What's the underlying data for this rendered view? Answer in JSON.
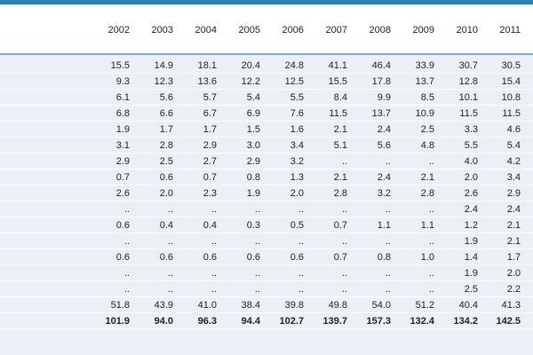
{
  "table": {
    "years": [
      "2002",
      "2003",
      "2004",
      "2005",
      "2006",
      "2007",
      "2008",
      "2009",
      "2010",
      "2011"
    ],
    "rows": [
      [
        "15.5",
        "14.9",
        "18.1",
        "20.4",
        "24.8",
        "41.1",
        "46.4",
        "33.9",
        "30.7",
        "30.5"
      ],
      [
        "9.3",
        "12.3",
        "13.6",
        "12.2",
        "12.5",
        "15.5",
        "17.8",
        "13.7",
        "12.8",
        "15.4"
      ],
      [
        "6.1",
        "5.6",
        "5.7",
        "5.4",
        "5.5",
        "8.4",
        "9.9",
        "8.5",
        "10.1",
        "10.8"
      ],
      [
        "6.8",
        "6.6",
        "6.7",
        "6.9",
        "7.6",
        "11.5",
        "13.7",
        "10.9",
        "11.5",
        "11.5"
      ],
      [
        "1.9",
        "1.7",
        "1.7",
        "1.5",
        "1.6",
        "2.1",
        "2.4",
        "2.5",
        "3.3",
        "4.6"
      ],
      [
        "3.1",
        "2.8",
        "2.9",
        "3.0",
        "3.4",
        "5.1",
        "5.6",
        "4.8",
        "5.5",
        "5.4"
      ],
      [
        "2.9",
        "2.5",
        "2.7",
        "2.9",
        "3.2",
        "..",
        "..",
        "..",
        "4.0",
        "4.2"
      ],
      [
        "0.7",
        "0.6",
        "0.7",
        "0.8",
        "1.3",
        "2.1",
        "2.4",
        "2.1",
        "2.0",
        "3.4"
      ],
      [
        "2.6",
        "2.0",
        "2.3",
        "1.9",
        "2.0",
        "2.8",
        "3.2",
        "2.8",
        "2.6",
        "2.9"
      ],
      [
        "..",
        "..",
        "..",
        "..",
        "..",
        "..",
        "..",
        "..",
        "2.4",
        "2.4"
      ],
      [
        "0.6",
        "0.4",
        "0.4",
        "0.3",
        "0.5",
        "0.7",
        "1.1",
        "1.1",
        "1.2",
        "2.1"
      ],
      [
        "..",
        "..",
        "..",
        "..",
        "..",
        "..",
        "..",
        "..",
        "1.9",
        "2.1"
      ],
      [
        "0.6",
        "0.6",
        "0.6",
        "0.6",
        "0.6",
        "0.7",
        "0.8",
        "1.0",
        "1.4",
        "1.7"
      ],
      [
        "..",
        "..",
        "..",
        "..",
        "..",
        "..",
        "..",
        "..",
        "1.9",
        "2.0"
      ],
      [
        "..",
        "..",
        "..",
        "..",
        "..",
        "..",
        "..",
        "..",
        "2.5",
        "2.2"
      ],
      [
        "51.8",
        "43.9",
        "41.0",
        "38.4",
        "39.8",
        "49.8",
        "54.0",
        "51.2",
        "40.4",
        "41.3"
      ]
    ],
    "total": [
      "101.9",
      "94.0",
      "96.3",
      "94.4",
      "102.7",
      "139.7",
      "157.3",
      "132.4",
      "134.2",
      "142.5"
    ]
  }
}
